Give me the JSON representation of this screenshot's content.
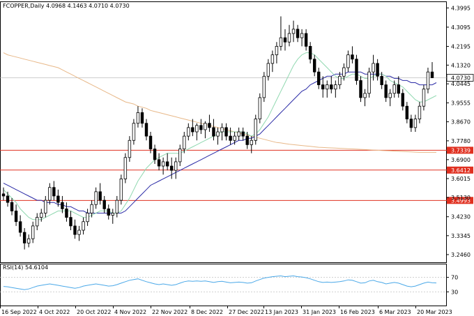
{
  "header": {
    "symbol": "FCOPPER,",
    "timeframe": "Daily",
    "ohlc": "4.0968 4.1463 4.0710 4.0730"
  },
  "rsi": {
    "label": "RSI(14) 54.6104",
    "levels": [
      "70",
      "30"
    ]
  },
  "colors": {
    "up": "#000000",
    "down": "#000000",
    "fast_ma": "#90d8b0",
    "mid_ma": "#2a2aa6",
    "slow_ma": "#e8b888",
    "hline": "#e03020",
    "rsi": "#4aa8e8",
    "grid": "#c8c8c8"
  },
  "chart_data": {
    "type": "candlestick",
    "price_axis": {
      "ylim": [
        3.21,
        4.43
      ],
      "ticks": [
        "4.3995",
        "4.3095",
        "4.2195",
        "4.1320",
        "4.0445",
        "3.9555",
        "3.8670",
        "3.7780",
        "3.6900",
        "3.6015",
        "3.5130",
        "3.4230",
        "3.3345",
        "3.2460"
      ]
    },
    "last_price": "4.0730",
    "hlines": [
      "3.7339",
      "3.6412",
      "3.4993"
    ],
    "x_ticks": [
      "16 Sep 2022",
      "4 Oct 2022",
      "20 Oct 2022",
      "4 Nov 2022",
      "22 Nov 2022",
      "8 Dec 2022",
      "27 Dec 2022",
      "13 Jan 2023",
      "31 Jan 2023",
      "16 Feb 2023",
      "6 Mar 2023",
      "20 Mar 2023"
    ],
    "candles": [
      [
        3.53,
        3.56,
        3.5,
        3.52
      ],
      [
        3.52,
        3.54,
        3.47,
        3.49
      ],
      [
        3.49,
        3.51,
        3.43,
        3.45
      ],
      [
        3.45,
        3.48,
        3.38,
        3.4
      ],
      [
        3.4,
        3.43,
        3.33,
        3.35
      ],
      [
        3.35,
        3.37,
        3.27,
        3.3
      ],
      [
        3.3,
        3.34,
        3.28,
        3.32
      ],
      [
        3.32,
        3.4,
        3.3,
        3.38
      ],
      [
        3.38,
        3.44,
        3.36,
        3.42
      ],
      [
        3.42,
        3.46,
        3.4,
        3.44
      ],
      [
        3.44,
        3.52,
        3.42,
        3.5
      ],
      [
        3.5,
        3.58,
        3.48,
        3.56
      ],
      [
        3.56,
        3.59,
        3.5,
        3.52
      ],
      [
        3.52,
        3.55,
        3.47,
        3.49
      ],
      [
        3.49,
        3.52,
        3.44,
        3.46
      ],
      [
        3.46,
        3.49,
        3.4,
        3.42
      ],
      [
        3.42,
        3.45,
        3.36,
        3.38
      ],
      [
        3.38,
        3.41,
        3.32,
        3.34
      ],
      [
        3.34,
        3.38,
        3.31,
        3.36
      ],
      [
        3.36,
        3.42,
        3.34,
        3.4
      ],
      [
        3.4,
        3.46,
        3.38,
        3.44
      ],
      [
        3.44,
        3.5,
        3.42,
        3.48
      ],
      [
        3.48,
        3.56,
        3.46,
        3.54
      ],
      [
        3.54,
        3.58,
        3.48,
        3.5
      ],
      [
        3.5,
        3.52,
        3.44,
        3.46
      ],
      [
        3.46,
        3.48,
        3.41,
        3.43
      ],
      [
        3.43,
        3.46,
        3.39,
        3.44
      ],
      [
        3.44,
        3.52,
        3.42,
        3.5
      ],
      [
        3.5,
        3.62,
        3.48,
        3.6
      ],
      [
        3.6,
        3.72,
        3.58,
        3.7
      ],
      [
        3.7,
        3.8,
        3.68,
        3.78
      ],
      [
        3.78,
        3.88,
        3.76,
        3.86
      ],
      [
        3.86,
        3.94,
        3.84,
        3.91
      ],
      [
        3.91,
        3.93,
        3.84,
        3.86
      ],
      [
        3.86,
        3.88,
        3.78,
        3.8
      ],
      [
        3.8,
        3.82,
        3.72,
        3.74
      ],
      [
        3.74,
        3.76,
        3.67,
        3.69
      ],
      [
        3.69,
        3.72,
        3.64,
        3.66
      ],
      [
        3.66,
        3.7,
        3.62,
        3.68
      ],
      [
        3.68,
        3.72,
        3.64,
        3.66
      ],
      [
        3.66,
        3.7,
        3.6,
        3.64
      ],
      [
        3.64,
        3.7,
        3.6,
        3.68
      ],
      [
        3.68,
        3.76,
        3.66,
        3.74
      ],
      [
        3.74,
        3.82,
        3.72,
        3.8
      ],
      [
        3.8,
        3.86,
        3.78,
        3.84
      ],
      [
        3.84,
        3.88,
        3.8,
        3.82
      ],
      [
        3.82,
        3.86,
        3.78,
        3.85
      ],
      [
        3.85,
        3.88,
        3.81,
        3.83
      ],
      [
        3.83,
        3.87,
        3.79,
        3.86
      ],
      [
        3.86,
        3.9,
        3.82,
        3.84
      ],
      [
        3.84,
        3.88,
        3.78,
        3.8
      ],
      [
        3.8,
        3.84,
        3.76,
        3.82
      ],
      [
        3.82,
        3.86,
        3.78,
        3.84
      ],
      [
        3.84,
        3.86,
        3.78,
        3.8
      ],
      [
        3.8,
        3.84,
        3.76,
        3.78
      ],
      [
        3.78,
        3.82,
        3.76,
        3.8
      ],
      [
        3.8,
        3.84,
        3.78,
        3.82
      ],
      [
        3.82,
        3.84,
        3.78,
        3.8
      ],
      [
        3.8,
        3.82,
        3.74,
        3.76
      ],
      [
        3.76,
        3.8,
        3.72,
        3.78
      ],
      [
        3.78,
        3.9,
        3.76,
        3.88
      ],
      [
        3.88,
        4.0,
        3.86,
        3.98
      ],
      [
        3.98,
        4.1,
        3.96,
        4.08
      ],
      [
        4.08,
        4.16,
        4.06,
        4.14
      ],
      [
        4.14,
        4.2,
        4.1,
        4.18
      ],
      [
        4.18,
        4.24,
        4.14,
        4.22
      ],
      [
        4.22,
        4.36,
        4.2,
        4.26
      ],
      [
        4.26,
        4.3,
        4.2,
        4.24
      ],
      [
        4.24,
        4.32,
        4.22,
        4.28
      ],
      [
        4.28,
        4.34,
        4.24,
        4.3
      ],
      [
        4.3,
        4.32,
        4.24,
        4.26
      ],
      [
        4.26,
        4.3,
        4.22,
        4.28
      ],
      [
        4.28,
        4.3,
        4.2,
        4.22
      ],
      [
        4.22,
        4.24,
        4.14,
        4.16
      ],
      [
        4.16,
        4.18,
        4.08,
        4.1
      ],
      [
        4.1,
        4.12,
        4.02,
        4.04
      ],
      [
        4.04,
        4.08,
        3.98,
        4.02
      ],
      [
        4.02,
        4.06,
        3.98,
        4.04
      ],
      [
        4.04,
        4.08,
        4.0,
        4.02
      ],
      [
        4.02,
        4.06,
        3.98,
        4.04
      ],
      [
        4.04,
        4.1,
        4.02,
        4.08
      ],
      [
        4.08,
        4.14,
        4.06,
        4.12
      ],
      [
        4.12,
        4.2,
        4.1,
        4.18
      ],
      [
        4.18,
        4.22,
        4.14,
        4.16
      ],
      [
        4.16,
        4.18,
        4.04,
        4.06
      ],
      [
        4.06,
        4.08,
        3.96,
        3.98
      ],
      [
        3.98,
        4.02,
        3.94,
        4.0
      ],
      [
        4.0,
        4.12,
        3.98,
        4.1
      ],
      [
        4.1,
        4.18,
        4.06,
        4.14
      ],
      [
        4.14,
        4.16,
        4.06,
        4.08
      ],
      [
        4.08,
        4.1,
        4.02,
        4.04
      ],
      [
        4.04,
        4.06,
        3.96,
        3.98
      ],
      [
        3.98,
        4.02,
        3.94,
        4.0
      ],
      [
        4.0,
        4.06,
        3.98,
        4.04
      ],
      [
        4.04,
        4.08,
        3.98,
        4.0
      ],
      [
        4.0,
        4.02,
        3.92,
        3.94
      ],
      [
        3.94,
        3.96,
        3.86,
        3.88
      ],
      [
        3.88,
        3.9,
        3.82,
        3.84
      ],
      [
        3.84,
        3.9,
        3.82,
        3.88
      ],
      [
        3.88,
        3.96,
        3.86,
        3.94
      ],
      [
        3.94,
        4.04,
        3.92,
        4.02
      ],
      [
        4.02,
        4.12,
        4.0,
        4.1
      ],
      [
        4.1,
        4.146,
        4.071,
        4.073
      ]
    ],
    "sma_fast": [
      3.55,
      3.53,
      3.51,
      3.49,
      3.46,
      3.44,
      3.42,
      3.41,
      3.41,
      3.41,
      3.42,
      3.43,
      3.44,
      3.45,
      3.45,
      3.45,
      3.45,
      3.44,
      3.43,
      3.42,
      3.42,
      3.43,
      3.44,
      3.45,
      3.45,
      3.45,
      3.44,
      3.44,
      3.45,
      3.48,
      3.51,
      3.55,
      3.59,
      3.62,
      3.65,
      3.67,
      3.69,
      3.7,
      3.71,
      3.72,
      3.72,
      3.72,
      3.72,
      3.73,
      3.74,
      3.75,
      3.76,
      3.77,
      3.78,
      3.79,
      3.8,
      3.81,
      3.82,
      3.82,
      3.82,
      3.82,
      3.82,
      3.82,
      3.81,
      3.8,
      3.81,
      3.83,
      3.86,
      3.89,
      3.93,
      3.97,
      4.01,
      4.05,
      4.09,
      4.13,
      4.16,
      4.18,
      4.19,
      4.19,
      4.18,
      4.16,
      4.14,
      4.12,
      4.1,
      4.08,
      4.07,
      4.07,
      4.08,
      4.09,
      4.09,
      4.08,
      4.07,
      4.07,
      4.08,
      4.09,
      4.09,
      4.08,
      4.06,
      4.05,
      4.04,
      4.03,
      4.01,
      3.99,
      3.97,
      3.96,
      3.96,
      3.97,
      3.98,
      3.99
    ],
    "sma_mid": [
      3.58,
      3.57,
      3.56,
      3.55,
      3.54,
      3.53,
      3.52,
      3.51,
      3.5,
      3.5,
      3.49,
      3.49,
      3.49,
      3.48,
      3.48,
      3.47,
      3.47,
      3.46,
      3.45,
      3.45,
      3.44,
      3.44,
      3.44,
      3.44,
      3.44,
      3.44,
      3.44,
      3.44,
      3.44,
      3.45,
      3.47,
      3.49,
      3.51,
      3.53,
      3.55,
      3.57,
      3.58,
      3.59,
      3.6,
      3.61,
      3.62,
      3.63,
      3.64,
      3.65,
      3.66,
      3.67,
      3.68,
      3.69,
      3.7,
      3.71,
      3.72,
      3.73,
      3.74,
      3.75,
      3.76,
      3.77,
      3.78,
      3.78,
      3.79,
      3.79,
      3.8,
      3.81,
      3.83,
      3.85,
      3.87,
      3.89,
      3.91,
      3.93,
      3.95,
      3.97,
      3.99,
      4.01,
      4.02,
      4.04,
      4.05,
      4.06,
      4.07,
      4.08,
      4.08,
      4.09,
      4.09,
      4.09,
      4.1,
      4.1,
      4.1,
      4.1,
      4.09,
      4.09,
      4.09,
      4.09,
      4.09,
      4.08,
      4.08,
      4.07,
      4.07,
      4.06,
      4.06,
      4.05,
      4.05,
      4.04,
      4.04,
      4.04,
      4.04,
      4.05
    ],
    "sma_slow": [
      4.19,
      4.18,
      4.175,
      4.17,
      4.165,
      4.16,
      4.155,
      4.15,
      4.145,
      4.14,
      4.135,
      4.13,
      4.125,
      4.12,
      4.11,
      4.1,
      4.09,
      4.08,
      4.07,
      4.06,
      4.05,
      4.04,
      4.03,
      4.02,
      4.01,
      4.0,
      3.99,
      3.98,
      3.97,
      3.96,
      3.955,
      3.95,
      3.94,
      3.935,
      3.93,
      3.92,
      3.915,
      3.91,
      3.905,
      3.9,
      3.895,
      3.89,
      3.885,
      3.88,
      3.875,
      3.87,
      3.865,
      3.86,
      3.855,
      3.85,
      3.845,
      3.84,
      3.835,
      3.83,
      3.825,
      3.82,
      3.815,
      3.81,
      3.805,
      3.8,
      3.795,
      3.79,
      3.785,
      3.78,
      3.775,
      3.77,
      3.768,
      3.765,
      3.762,
      3.76,
      3.758,
      3.756,
      3.754,
      3.752,
      3.75,
      3.748,
      3.747,
      3.746,
      3.745,
      3.744,
      3.743,
      3.742,
      3.741,
      3.74,
      3.739,
      3.738,
      3.737,
      3.736,
      3.735,
      3.734,
      3.733,
      3.732,
      3.731,
      3.73,
      3.729,
      3.728,
      3.727,
      3.726,
      3.725,
      3.724,
      3.724,
      3.724,
      3.724,
      3.724
    ],
    "rsi_values": [
      45,
      44,
      42,
      40,
      38,
      36,
      38,
      42,
      46,
      48,
      50,
      52,
      50,
      48,
      46,
      44,
      42,
      40,
      42,
      46,
      48,
      50,
      52,
      50,
      48,
      46,
      47,
      50,
      54,
      58,
      62,
      64,
      66,
      62,
      58,
      55,
      52,
      50,
      52,
      50,
      48,
      50,
      54,
      58,
      60,
      59,
      60,
      59,
      60,
      58,
      56,
      58,
      59,
      57,
      55,
      56,
      57,
      56,
      54,
      55,
      60,
      64,
      68,
      70,
      72,
      73,
      74,
      72,
      73,
      74,
      72,
      71,
      69,
      66,
      62,
      58,
      56,
      57,
      56,
      57,
      58,
      60,
      63,
      62,
      58,
      54,
      55,
      60,
      62,
      58,
      56,
      52,
      54,
      56,
      54,
      50,
      46,
      44,
      46,
      50,
      54,
      57,
      55,
      54.6
    ],
    "rsi_range": [
      0,
      100
    ]
  }
}
